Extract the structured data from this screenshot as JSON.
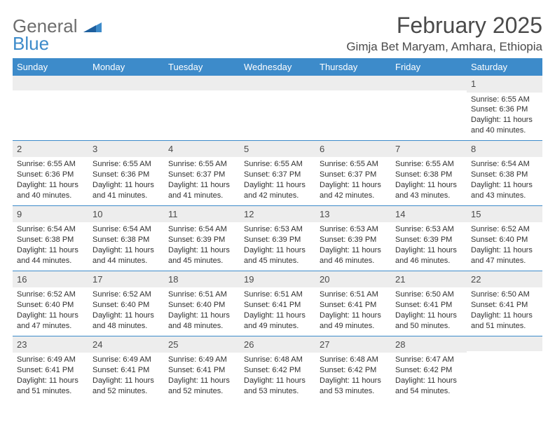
{
  "brand": {
    "line1": "General",
    "line2": "Blue"
  },
  "title": "February 2025",
  "location": "Gimja Bet Maryam, Amhara, Ethiopia",
  "colors": {
    "header_bg": "#3d8bca",
    "header_text": "#ffffff",
    "daynum_bg": "#ededed",
    "text": "#303030",
    "brand_gray": "#6d6d6d",
    "brand_blue": "#3d8bca",
    "page_bg": "#ffffff"
  },
  "typography": {
    "title_fontsize": 32,
    "location_fontsize": 17,
    "dayheader_fontsize": 13,
    "cell_fontsize": 11
  },
  "day_headers": [
    "Sunday",
    "Monday",
    "Tuesday",
    "Wednesday",
    "Thursday",
    "Friday",
    "Saturday"
  ],
  "weeks": [
    [
      {
        "n": "",
        "sr": "",
        "ss": "",
        "dl": ""
      },
      {
        "n": "",
        "sr": "",
        "ss": "",
        "dl": ""
      },
      {
        "n": "",
        "sr": "",
        "ss": "",
        "dl": ""
      },
      {
        "n": "",
        "sr": "",
        "ss": "",
        "dl": ""
      },
      {
        "n": "",
        "sr": "",
        "ss": "",
        "dl": ""
      },
      {
        "n": "",
        "sr": "",
        "ss": "",
        "dl": ""
      },
      {
        "n": "1",
        "sr": "Sunrise: 6:55 AM",
        "ss": "Sunset: 6:36 PM",
        "dl": "Daylight: 11 hours and 40 minutes."
      }
    ],
    [
      {
        "n": "2",
        "sr": "Sunrise: 6:55 AM",
        "ss": "Sunset: 6:36 PM",
        "dl": "Daylight: 11 hours and 40 minutes."
      },
      {
        "n": "3",
        "sr": "Sunrise: 6:55 AM",
        "ss": "Sunset: 6:36 PM",
        "dl": "Daylight: 11 hours and 41 minutes."
      },
      {
        "n": "4",
        "sr": "Sunrise: 6:55 AM",
        "ss": "Sunset: 6:37 PM",
        "dl": "Daylight: 11 hours and 41 minutes."
      },
      {
        "n": "5",
        "sr": "Sunrise: 6:55 AM",
        "ss": "Sunset: 6:37 PM",
        "dl": "Daylight: 11 hours and 42 minutes."
      },
      {
        "n": "6",
        "sr": "Sunrise: 6:55 AM",
        "ss": "Sunset: 6:37 PM",
        "dl": "Daylight: 11 hours and 42 minutes."
      },
      {
        "n": "7",
        "sr": "Sunrise: 6:55 AM",
        "ss": "Sunset: 6:38 PM",
        "dl": "Daylight: 11 hours and 43 minutes."
      },
      {
        "n": "8",
        "sr": "Sunrise: 6:54 AM",
        "ss": "Sunset: 6:38 PM",
        "dl": "Daylight: 11 hours and 43 minutes."
      }
    ],
    [
      {
        "n": "9",
        "sr": "Sunrise: 6:54 AM",
        "ss": "Sunset: 6:38 PM",
        "dl": "Daylight: 11 hours and 44 minutes."
      },
      {
        "n": "10",
        "sr": "Sunrise: 6:54 AM",
        "ss": "Sunset: 6:38 PM",
        "dl": "Daylight: 11 hours and 44 minutes."
      },
      {
        "n": "11",
        "sr": "Sunrise: 6:54 AM",
        "ss": "Sunset: 6:39 PM",
        "dl": "Daylight: 11 hours and 45 minutes."
      },
      {
        "n": "12",
        "sr": "Sunrise: 6:53 AM",
        "ss": "Sunset: 6:39 PM",
        "dl": "Daylight: 11 hours and 45 minutes."
      },
      {
        "n": "13",
        "sr": "Sunrise: 6:53 AM",
        "ss": "Sunset: 6:39 PM",
        "dl": "Daylight: 11 hours and 46 minutes."
      },
      {
        "n": "14",
        "sr": "Sunrise: 6:53 AM",
        "ss": "Sunset: 6:39 PM",
        "dl": "Daylight: 11 hours and 46 minutes."
      },
      {
        "n": "15",
        "sr": "Sunrise: 6:52 AM",
        "ss": "Sunset: 6:40 PM",
        "dl": "Daylight: 11 hours and 47 minutes."
      }
    ],
    [
      {
        "n": "16",
        "sr": "Sunrise: 6:52 AM",
        "ss": "Sunset: 6:40 PM",
        "dl": "Daylight: 11 hours and 47 minutes."
      },
      {
        "n": "17",
        "sr": "Sunrise: 6:52 AM",
        "ss": "Sunset: 6:40 PM",
        "dl": "Daylight: 11 hours and 48 minutes."
      },
      {
        "n": "18",
        "sr": "Sunrise: 6:51 AM",
        "ss": "Sunset: 6:40 PM",
        "dl": "Daylight: 11 hours and 48 minutes."
      },
      {
        "n": "19",
        "sr": "Sunrise: 6:51 AM",
        "ss": "Sunset: 6:41 PM",
        "dl": "Daylight: 11 hours and 49 minutes."
      },
      {
        "n": "20",
        "sr": "Sunrise: 6:51 AM",
        "ss": "Sunset: 6:41 PM",
        "dl": "Daylight: 11 hours and 49 minutes."
      },
      {
        "n": "21",
        "sr": "Sunrise: 6:50 AM",
        "ss": "Sunset: 6:41 PM",
        "dl": "Daylight: 11 hours and 50 minutes."
      },
      {
        "n": "22",
        "sr": "Sunrise: 6:50 AM",
        "ss": "Sunset: 6:41 PM",
        "dl": "Daylight: 11 hours and 51 minutes."
      }
    ],
    [
      {
        "n": "23",
        "sr": "Sunrise: 6:49 AM",
        "ss": "Sunset: 6:41 PM",
        "dl": "Daylight: 11 hours and 51 minutes."
      },
      {
        "n": "24",
        "sr": "Sunrise: 6:49 AM",
        "ss": "Sunset: 6:41 PM",
        "dl": "Daylight: 11 hours and 52 minutes."
      },
      {
        "n": "25",
        "sr": "Sunrise: 6:49 AM",
        "ss": "Sunset: 6:41 PM",
        "dl": "Daylight: 11 hours and 52 minutes."
      },
      {
        "n": "26",
        "sr": "Sunrise: 6:48 AM",
        "ss": "Sunset: 6:42 PM",
        "dl": "Daylight: 11 hours and 53 minutes."
      },
      {
        "n": "27",
        "sr": "Sunrise: 6:48 AM",
        "ss": "Sunset: 6:42 PM",
        "dl": "Daylight: 11 hours and 53 minutes."
      },
      {
        "n": "28",
        "sr": "Sunrise: 6:47 AM",
        "ss": "Sunset: 6:42 PM",
        "dl": "Daylight: 11 hours and 54 minutes."
      },
      {
        "n": "",
        "sr": "",
        "ss": "",
        "dl": ""
      }
    ]
  ]
}
